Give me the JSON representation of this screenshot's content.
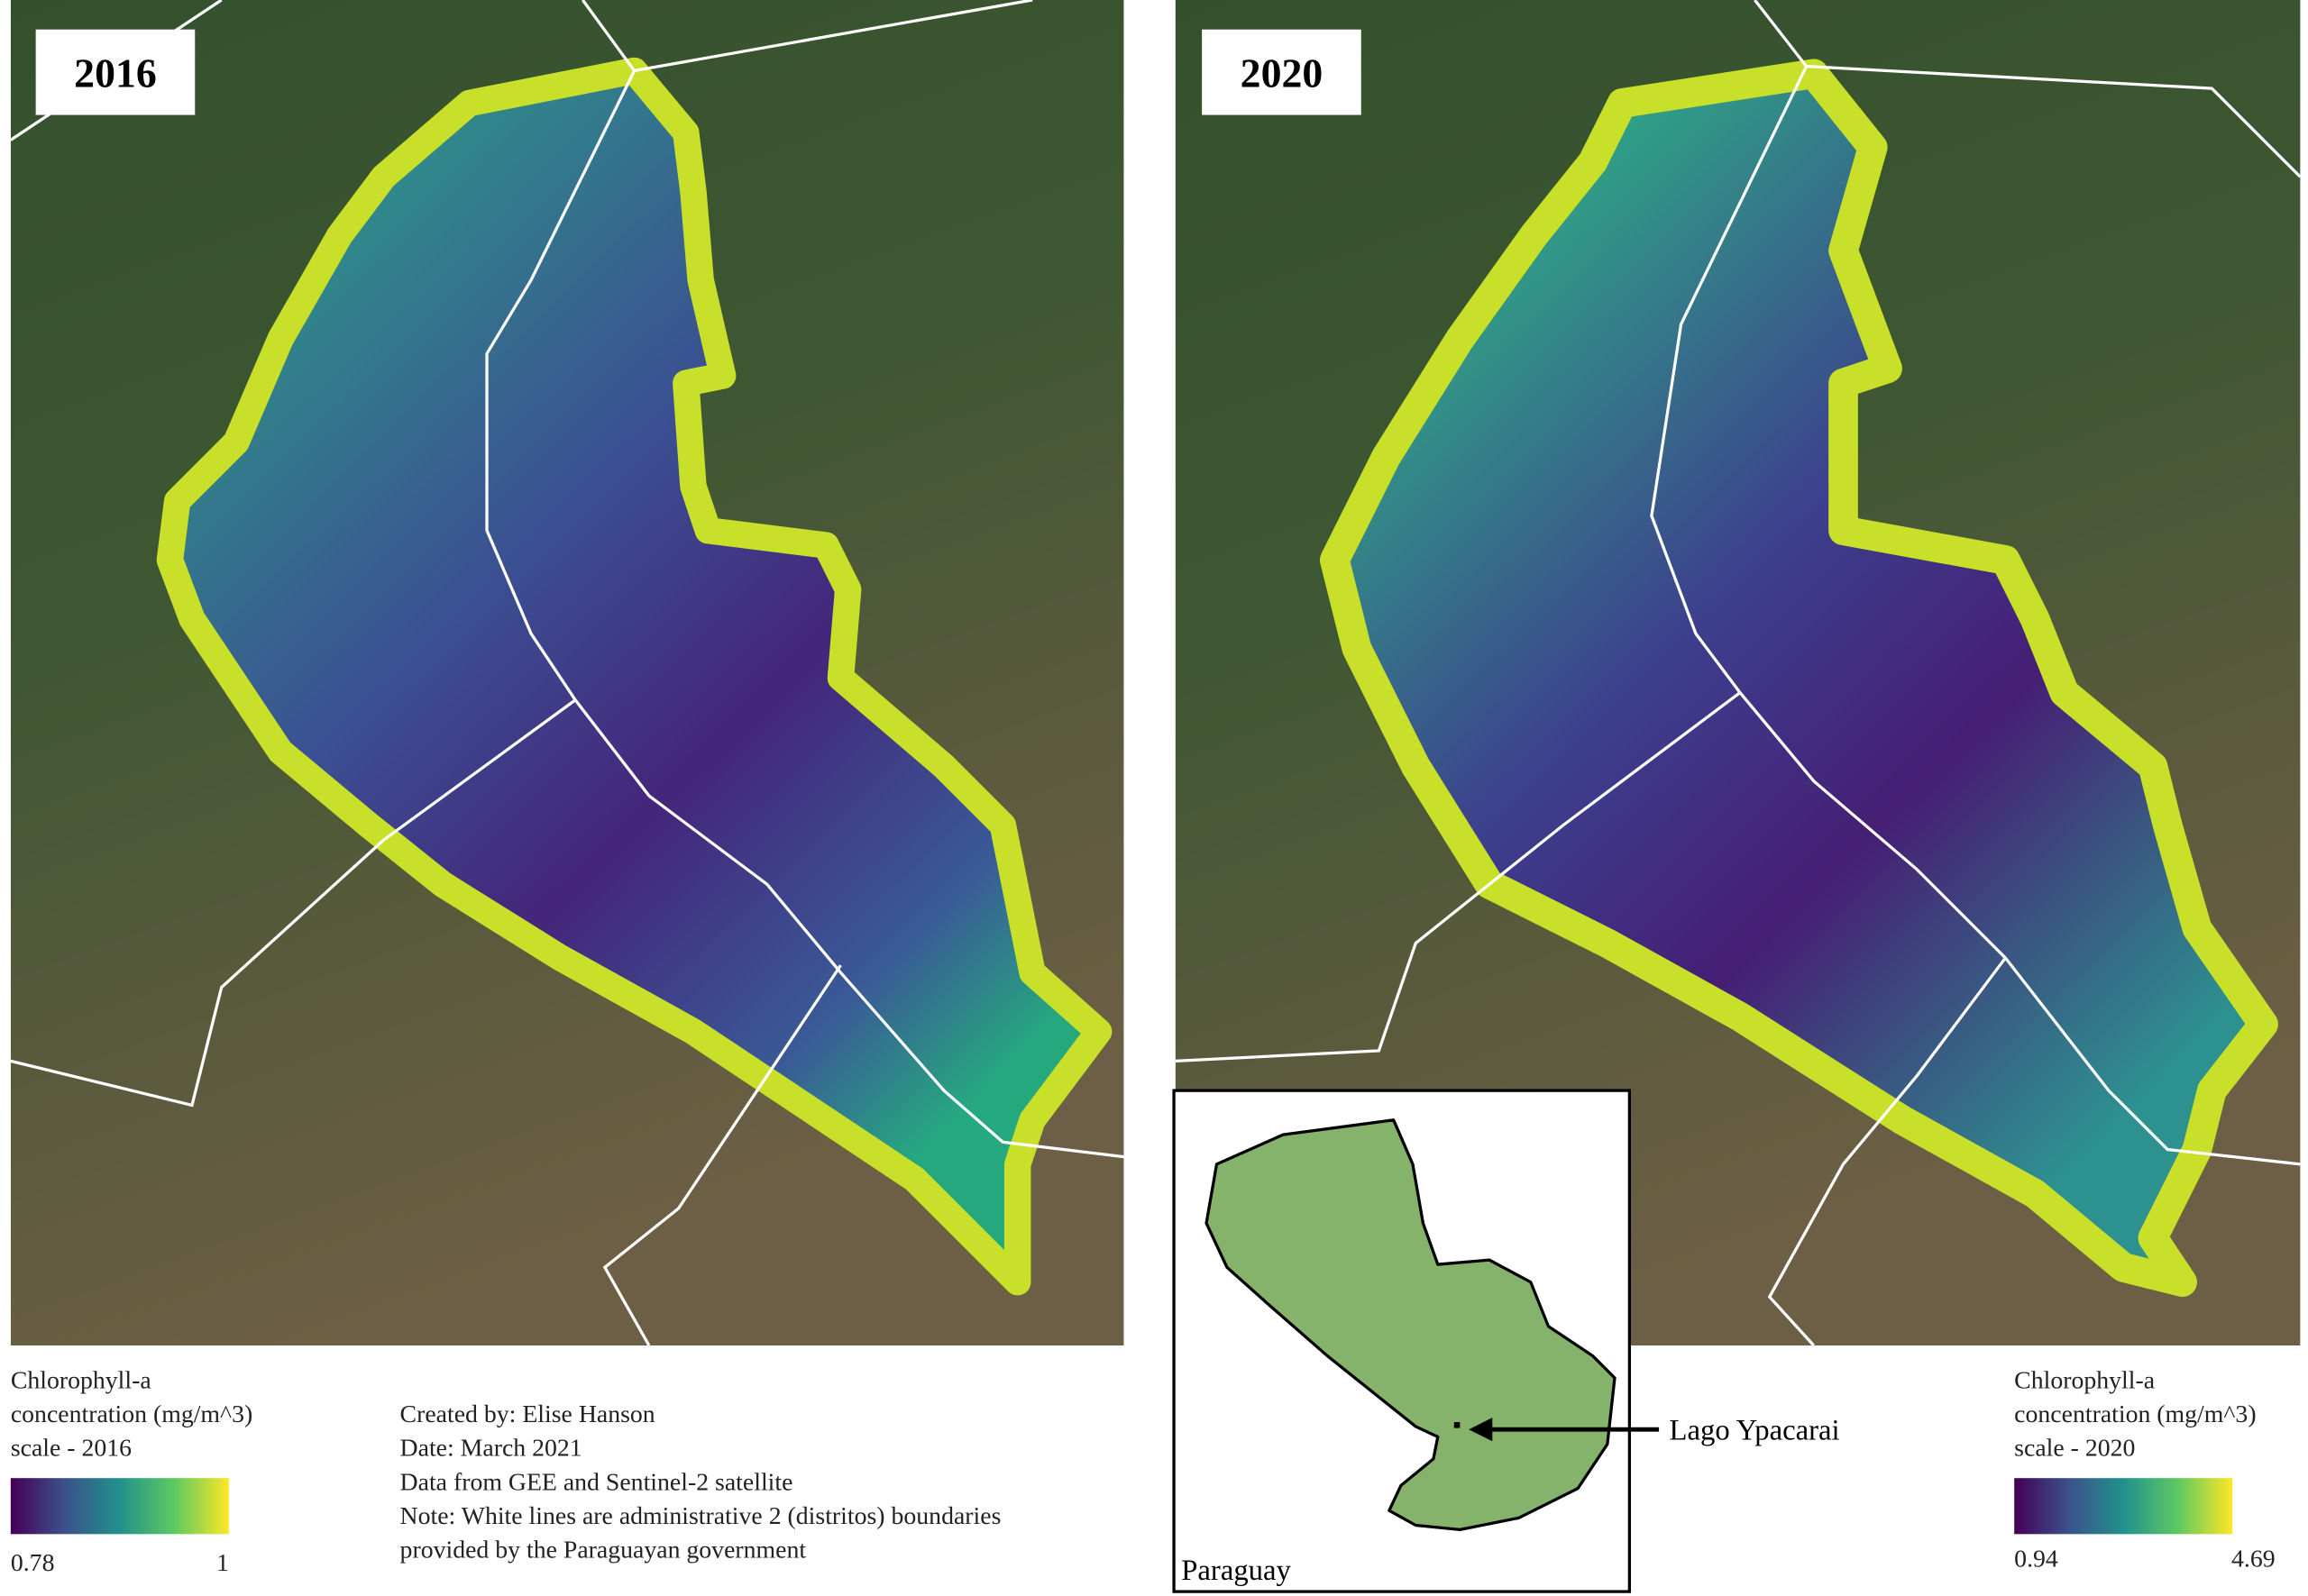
{
  "panels": [
    {
      "title": "2016",
      "legend": {
        "title_lines": [
          "Chlorophyll-a",
          "concentration (mg/m^3)",
          "scale - 2016"
        ],
        "min": 0.78,
        "max": 1
      }
    },
    {
      "title": "2020",
      "legend": {
        "title_lines": [
          "Chlorophyll-a",
          "concentration (mg/m^3)",
          "scale - 2020"
        ],
        "min": 0.94,
        "max": 4.69
      }
    }
  ],
  "credits": [
    "Created by: Elise Hanson",
    "Date: March 2021",
    "Data from GEE and Sentinel-2 satellite",
    "Note: White lines are administrative 2 (distritos) boundaries",
    "provided by the Paraguayan government"
  ],
  "inset": {
    "country": "Paraguay",
    "label": "Lago Ypacarai"
  }
}
